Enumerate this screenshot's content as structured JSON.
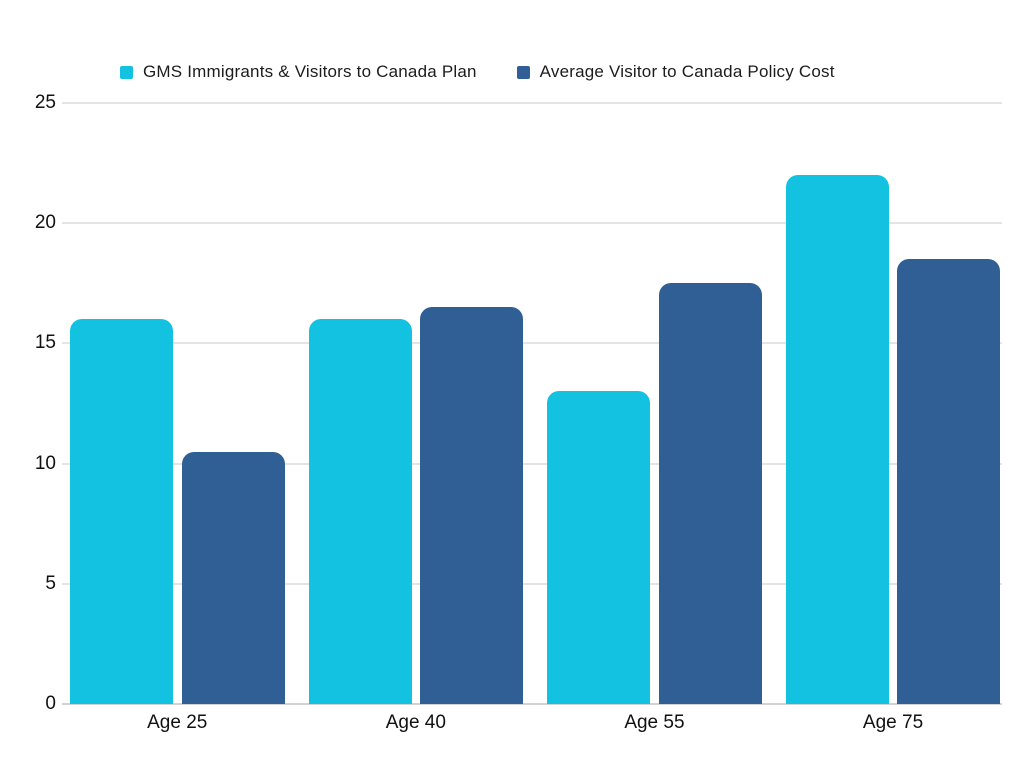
{
  "chart_data": {
    "type": "bar",
    "title": "",
    "categories": [
      "Age 25",
      "Age 40",
      "Age 55",
      "Age 75"
    ],
    "series": [
      {
        "name": "GMS Immigrants & Visitors to Canada Plan",
        "color": "#12C2E0",
        "values": [
          16,
          16,
          13,
          22
        ]
      },
      {
        "name": "Average Visitor to Canada Policy Cost",
        "color": "#305F96",
        "values": [
          10.5,
          16.5,
          17.5,
          18.5
        ]
      }
    ],
    "y_ticks": [
      0,
      5,
      10,
      15,
      20,
      25
    ],
    "ylim": [
      0,
      25
    ],
    "xlabel": "",
    "ylabel": "",
    "grid": "horizontal",
    "legend_position": "top"
  },
  "colors": {
    "background": "#ffffff",
    "gridline": "#e4e4e4",
    "axis_line": "#d2d2d2",
    "text": "#1c1c1c"
  }
}
